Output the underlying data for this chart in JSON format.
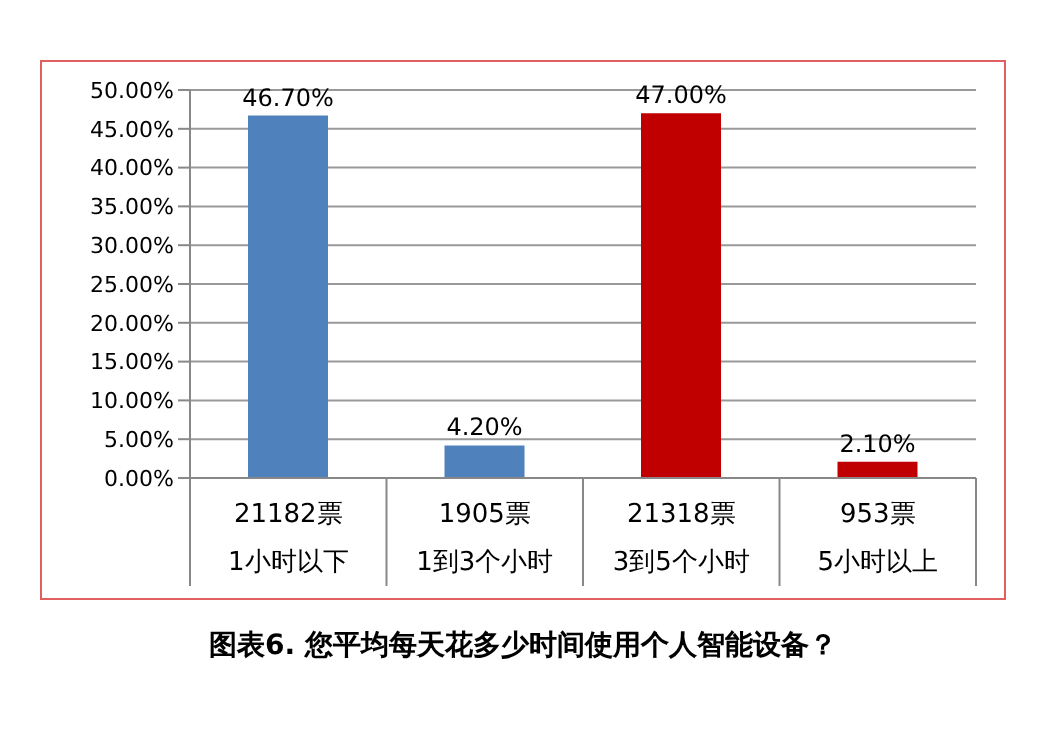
{
  "chart_data": {
    "type": "bar",
    "title": "图表6. 您平均每天花多少时间使用个人智能设备？",
    "categories": [
      "21182票\n1小时以下",
      "1905票\n1到3个小时",
      "21318票\n3到5个小时",
      "953票\n5小时以上"
    ],
    "values": [
      46.7,
      4.2,
      47.0,
      2.1
    ],
    "colors": [
      "#4f81bd",
      "#4f81bd",
      "#c00000",
      "#c00000"
    ],
    "value_labels": [
      "46.70%",
      "4.20%",
      "47.00%",
      "2.10%"
    ],
    "ylim": [
      0,
      50
    ],
    "yticks": [
      {
        "value": 0,
        "label": "0.00%"
      },
      {
        "value": 5,
        "label": "5.00%"
      },
      {
        "value": 10,
        "label": "10.00%"
      },
      {
        "value": 15,
        "label": "15.00%"
      },
      {
        "value": 20,
        "label": "20.00%"
      },
      {
        "value": 25,
        "label": "25.00%"
      },
      {
        "value": 30,
        "label": "30.00%"
      },
      {
        "value": 35,
        "label": "35.00%"
      },
      {
        "value": 40,
        "label": "40.00%"
      },
      {
        "value": 45,
        "label": "45.00%"
      },
      {
        "value": 50,
        "label": "50.00%"
      }
    ],
    "grid": "y"
  }
}
